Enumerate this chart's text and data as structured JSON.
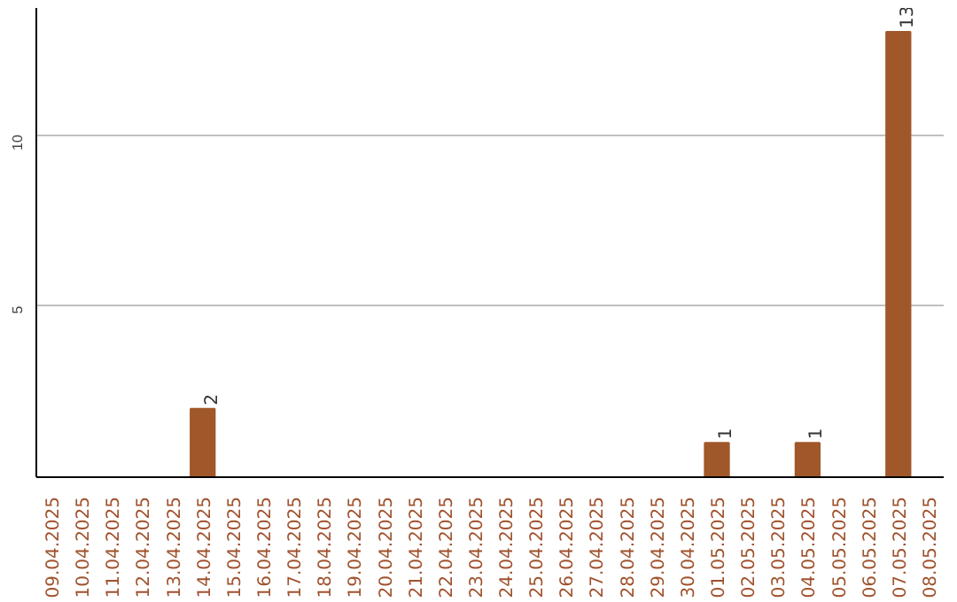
{
  "chart_data": {
    "type": "bar",
    "categories": [
      "09.04.2025",
      "10.04.2025",
      "11.04.2025",
      "12.04.2025",
      "13.04.2025",
      "14.04.2025",
      "15.04.2025",
      "16.04.2025",
      "17.04.2025",
      "18.04.2025",
      "19.04.2025",
      "20.04.2025",
      "21.04.2025",
      "22.04.2025",
      "23.04.2025",
      "24.04.2025",
      "25.04.2025",
      "26.04.2025",
      "27.04.2025",
      "28.04.2025",
      "29.04.2025",
      "30.04.2025",
      "01.05.2025",
      "02.05.2025",
      "03.05.2025",
      "04.05.2025",
      "05.05.2025",
      "06.05.2025",
      "07.05.2025",
      "08.05.2025"
    ],
    "values": [
      0,
      0,
      0,
      0,
      0,
      2,
      0,
      0,
      0,
      0,
      0,
      0,
      0,
      0,
      0,
      0,
      0,
      0,
      0,
      0,
      0,
      0,
      1,
      0,
      0,
      1,
      0,
      0,
      13,
      0
    ],
    "value_labels": [
      null,
      null,
      null,
      null,
      null,
      "2",
      null,
      null,
      null,
      null,
      null,
      null,
      null,
      null,
      null,
      null,
      null,
      null,
      null,
      null,
      null,
      null,
      "1",
      null,
      null,
      "1",
      null,
      null,
      "13",
      null
    ],
    "color": "#a0582a",
    "ylim": [
      0,
      13.7
    ],
    "yticks": [
      5,
      10
    ],
    "grid": "y"
  }
}
